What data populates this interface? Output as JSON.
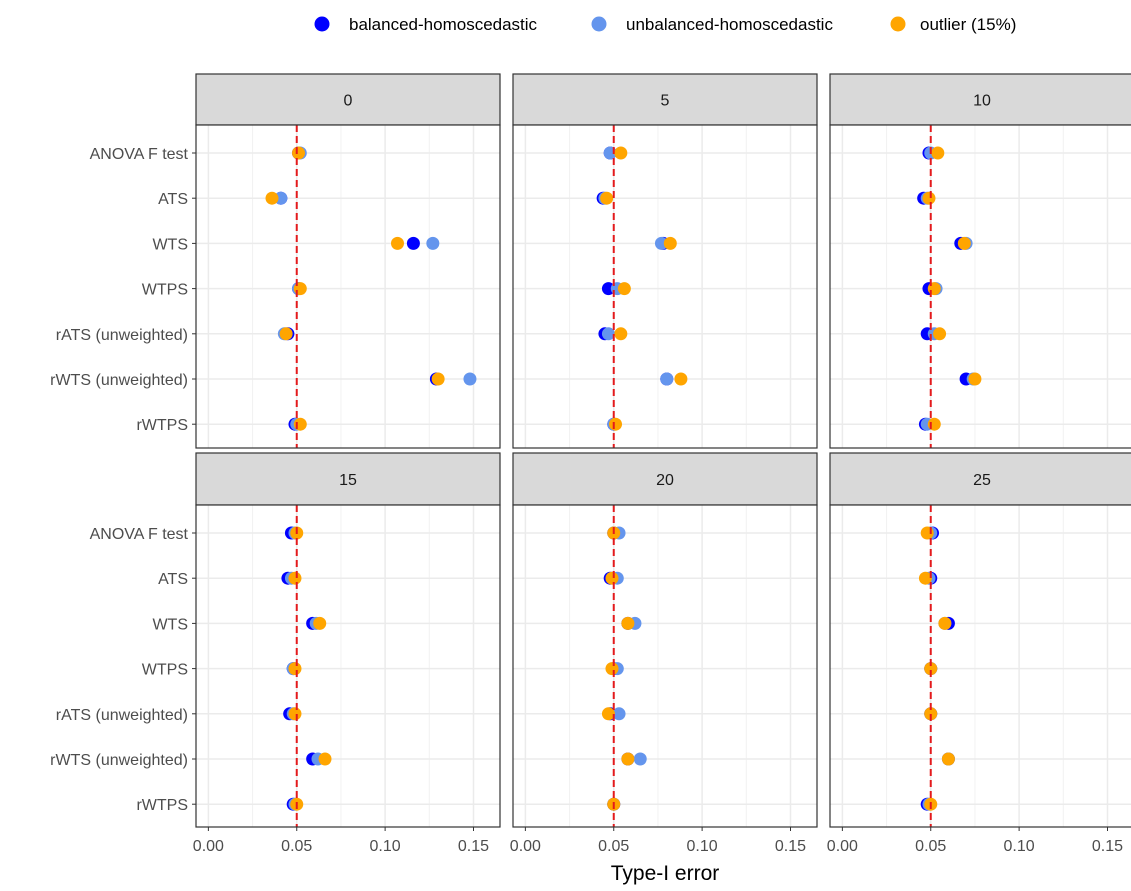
{
  "chart_data": {
    "type": "scatter",
    "xlabel": "Type-I error",
    "ylabel": "",
    "xlim": [
      -0.007,
      0.165
    ],
    "xticks": [
      0.0,
      0.05,
      0.1,
      0.15
    ],
    "xtick_labels": [
      "0.00",
      "0.05",
      "0.10",
      "0.15"
    ],
    "reference_line": {
      "x": 0.05,
      "style": "dashed",
      "color": "#e31a1c"
    },
    "categories": [
      "ANOVA F test",
      "ATS",
      "WTS",
      "WTPS",
      "rATS (unweighted)",
      "rWTS (unweighted)",
      "rWTPS"
    ],
    "legend": {
      "position": "top"
    },
    "series": [
      {
        "name": "balanced-homoscedastic",
        "color": "#0000ff"
      },
      {
        "name": "unbalanced-homoscedastic",
        "color": "#6495ed"
      },
      {
        "name": "outlier (15%)",
        "color": "#ffa500"
      }
    ],
    "panels": [
      {
        "label": "0",
        "values": [
          [
            0.051,
            0.052,
            0.051
          ],
          [
            0.041,
            0.041,
            0.036
          ],
          [
            0.116,
            0.127,
            0.107
          ],
          [
            0.051,
            0.051,
            0.052
          ],
          [
            0.045,
            0.043,
            0.044
          ],
          [
            0.129,
            0.148,
            0.13
          ],
          [
            0.049,
            0.05,
            0.052
          ]
        ]
      },
      {
        "label": "5",
        "values": [
          [
            0.048,
            0.048,
            0.054
          ],
          [
            0.044,
            0.045,
            0.046
          ],
          [
            0.078,
            0.077,
            0.082
          ],
          [
            0.047,
            0.052,
            0.056
          ],
          [
            0.045,
            0.047,
            0.054
          ],
          [
            0.08,
            0.08,
            0.088
          ],
          [
            0.05,
            0.05,
            0.051
          ]
        ]
      },
      {
        "label": "10",
        "values": [
          [
            0.049,
            0.05,
            0.054
          ],
          [
            0.046,
            0.048,
            0.049
          ],
          [
            0.067,
            0.07,
            0.069
          ],
          [
            0.049,
            0.053,
            0.052
          ],
          [
            0.048,
            0.052,
            0.055
          ],
          [
            0.07,
            0.074,
            0.075
          ],
          [
            0.047,
            0.048,
            0.052
          ]
        ]
      },
      {
        "label": "15",
        "values": [
          [
            0.047,
            0.049,
            0.05
          ],
          [
            0.045,
            0.047,
            0.049
          ],
          [
            0.059,
            0.061,
            0.063
          ],
          [
            0.048,
            0.048,
            0.049
          ],
          [
            0.046,
            0.048,
            0.049
          ],
          [
            0.059,
            0.062,
            0.066
          ],
          [
            0.048,
            0.049,
            0.05
          ]
        ]
      },
      {
        "label": "20",
        "values": [
          [
            0.05,
            0.053,
            0.05
          ],
          [
            0.048,
            0.052,
            0.049
          ],
          [
            0.058,
            0.062,
            0.058
          ],
          [
            0.05,
            0.052,
            0.049
          ],
          [
            0.048,
            0.053,
            0.047
          ],
          [
            0.058,
            0.065,
            0.058
          ],
          [
            0.05,
            0.05,
            0.05
          ]
        ]
      },
      {
        "label": "25",
        "values": [
          [
            0.051,
            0.05,
            0.048
          ],
          [
            0.05,
            0.049,
            0.047
          ],
          [
            0.06,
            0.058,
            0.058
          ],
          [
            0.05,
            0.05,
            0.05
          ],
          [
            0.05,
            0.05,
            0.05
          ],
          [
            0.06,
            0.06,
            0.06
          ],
          [
            0.048,
            0.049,
            0.05
          ]
        ]
      }
    ]
  }
}
